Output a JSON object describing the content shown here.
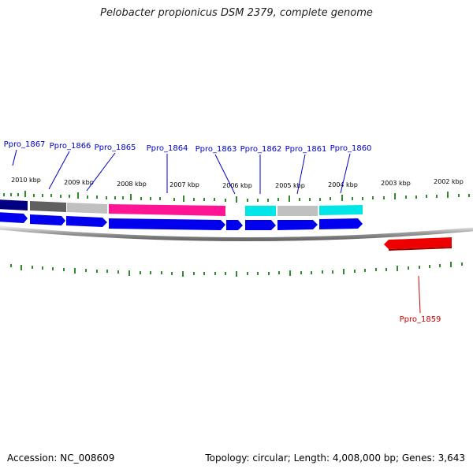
{
  "title": "Pelobacter propionicus DSM 2379, complete genome",
  "accession": "Accession: NC_008609",
  "summary": "Topology: circular; Length: 4,008,000 bp; Genes: 3,643",
  "colors": {
    "backbone": "#909090",
    "tick": "#2e8b2e",
    "forward_label": "#0000cc",
    "reverse_label": "#cc0000",
    "cds_forward": "#0000ee",
    "cds_reverse": "#ee0000"
  },
  "kbp_labels": [
    "2010 kbp",
    "2009 kbp",
    "2008 kbp",
    "2007 kbp",
    "2006 kbp",
    "2005 kbp",
    "2004 kbp",
    "2003 kbp",
    "2002 kbp"
  ],
  "gene_labels_forward": [
    "Ppro_1867",
    "Ppro_1866",
    "Ppro_1865",
    "Ppro_1864",
    "Ppro_1863",
    "Ppro_1862",
    "Ppro_1861",
    "Ppro_1860"
  ],
  "gene_labels_reverse": [
    "Ppro_1859"
  ],
  "cog_track_colors": [
    "#000080",
    "#606060",
    "#c0c0c0",
    "#ff1493",
    "#00e5e5",
    "#c0c0c0",
    "#00e5e5"
  ],
  "reverse_cog_color": "#ee0000"
}
